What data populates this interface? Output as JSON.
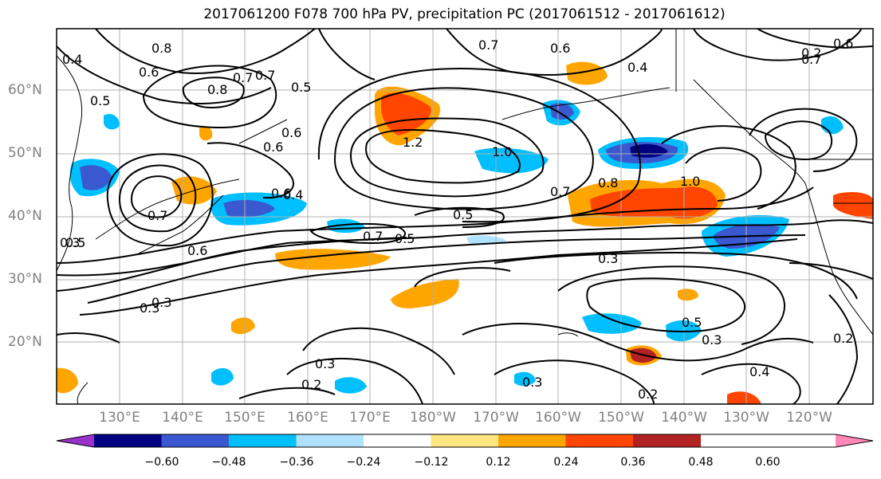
{
  "title": "2017061200 F078 700 hPa PV, precipitation PC (2017061512 - 2017061612)",
  "map": {
    "lat_labels": [
      "60°N",
      "50°N",
      "40°N",
      "30°N",
      "20°N"
    ],
    "lon_labels": [
      "130°E",
      "140°E",
      "150°E",
      "160°E",
      "170°E",
      "180°W",
      "170°W",
      "160°W",
      "150°W",
      "140°W",
      "130°W",
      "120°W"
    ],
    "contour_labels": [
      "0.8",
      "0.6",
      "0.7",
      "0.4",
      "0.5",
      "0.8",
      "0.6",
      "0.7",
      "0.7",
      "0.6",
      "0.5",
      "0.6",
      "1.2",
      "1.0",
      "0.4",
      "0.7",
      "0.8",
      "1.0",
      "0.5",
      "0.6",
      "0.7",
      "0.4",
      "0.5",
      "0.3",
      "0.6",
      "0.3",
      "0.3",
      "0.7",
      "0.5",
      "0.3",
      "0.3",
      "0.2",
      "0.3",
      "0.2",
      "0.4",
      "0.2",
      "0.7",
      "0.6",
      "0.5",
      "0.3",
      "0.2"
    ],
    "legend": {
      "ticks": [
        "−0.60",
        "−0.48",
        "−0.36",
        "−0.24",
        "−0.12",
        "0.12",
        "0.24",
        "0.36",
        "0.48",
        "0.60"
      ],
      "colors": [
        "#9932cc",
        "#000080",
        "#3a58d0",
        "#00bfff",
        "#b0e2ff",
        "#ffffff",
        "#ffe680",
        "#ffa500",
        "#ff4500",
        "#b22222",
        "#ff88b8"
      ]
    }
  }
}
